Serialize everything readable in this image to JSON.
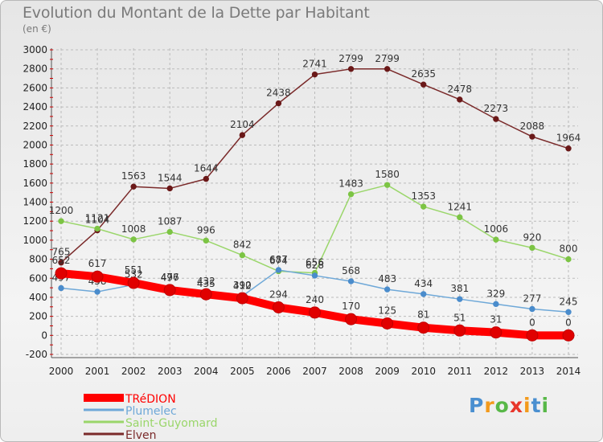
{
  "title": "Evolution du Montant de la Dette par Habitant",
  "subtitle": "(en €)",
  "logo": {
    "text": "Proxiti",
    "letter_colors": [
      "#4a8fd0",
      "#f39a1c",
      "#58b848",
      "#e8362b",
      "#f39a1c",
      "#4a8fd0",
      "#58b848"
    ]
  },
  "colors": {
    "grid": "#bbbbbb",
    "axis": "#555555",
    "axis_ticks_red": "#d00000"
  },
  "chart_data": {
    "type": "line",
    "title": "Evolution du Montant de la Dette par Habitant",
    "subtitle": "(en €)",
    "xlabel": "",
    "ylabel": "",
    "x": [
      "2000",
      "2001",
      "2002",
      "2003",
      "2004",
      "2005",
      "2006",
      "2007",
      "2008",
      "2009",
      "2010",
      "2011",
      "2012",
      "2013",
      "2014"
    ],
    "ylim": [
      -200,
      3000
    ],
    "yticks": [
      -200,
      0,
      200,
      400,
      600,
      800,
      1000,
      1200,
      1400,
      1600,
      1800,
      2000,
      2200,
      2400,
      2600,
      2800,
      3000
    ],
    "grid": "horizontal dashed",
    "legend_position": "bottom-left",
    "series": [
      {
        "name": "Elven",
        "color": "#7a2a2a",
        "marker": "#6a1818",
        "values": [
          765,
          1104,
          1563,
          1544,
          1644,
          2104,
          2438,
          2741,
          2799,
          2799,
          2635,
          2478,
          2273,
          2088,
          1964
        ]
      },
      {
        "name": "Saint-Guyomard",
        "color": "#9ad66a",
        "marker": "#7cc444",
        "values": [
          1200,
          1121,
          1008,
          1087,
          996,
          842,
          674,
          656,
          1483,
          1580,
          1353,
          1241,
          1006,
          920,
          800
        ]
      },
      {
        "name": "Plumelec",
        "color": "#6ea8d8",
        "marker": "#4a8ccc",
        "values": [
          497,
          458,
          532,
          497,
          435,
          412,
          687,
          628,
          568,
          483,
          434,
          381,
          329,
          277,
          245
        ]
      },
      {
        "name": "TRéDION",
        "color": "#ff0000",
        "marker": "#e00000",
        "values": [
          652,
          617,
          551,
          476,
          432,
          390,
          294,
          240,
          170,
          125,
          81,
          51,
          31,
          0,
          0
        ]
      }
    ]
  }
}
